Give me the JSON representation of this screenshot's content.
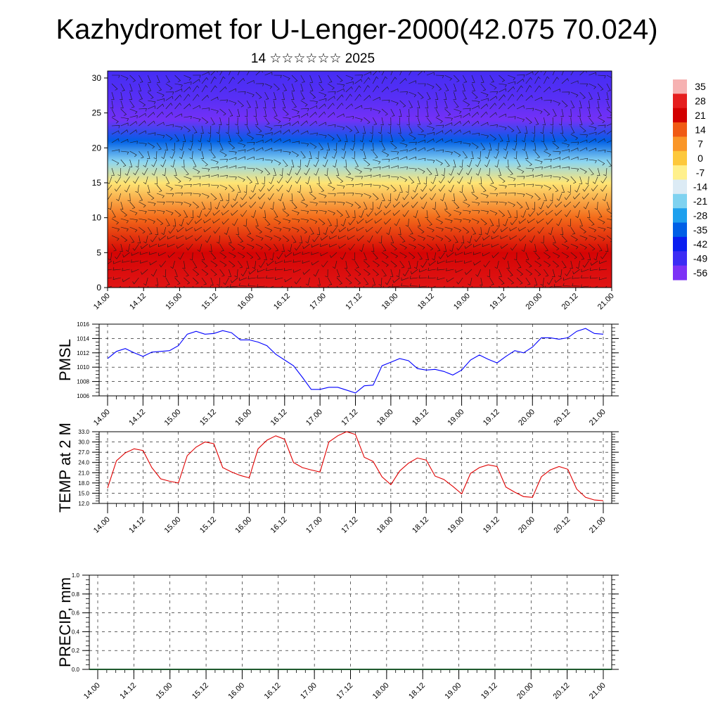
{
  "title": "Kazhydromet for U-Lenger-2000(42.075 70.024)",
  "subtitle": "14 ☆☆☆☆☆☆ 2025",
  "colorbar": {
    "labels": [
      "35",
      "28",
      "21",
      "14",
      "7",
      "0",
      "-7",
      "-14",
      "-21",
      "-28",
      "-35",
      "-42",
      "-49",
      "-56"
    ],
    "colors": [
      "#f6b2b2",
      "#e51e1e",
      "#d20000",
      "#f05a14",
      "#fa9628",
      "#fdc83c",
      "#fff08c",
      "#dcebf5",
      "#7fd2f0",
      "#1ea0ee",
      "#005fe6",
      "#0a1ef0",
      "#3c2cf4",
      "#7d32f6"
    ]
  },
  "chart_data": [
    {
      "type": "heatmap",
      "title": "Kazhydromet for U-Lenger-2000(42.075 70.024)",
      "subtitle": "14 ☆☆☆☆☆☆ 2025",
      "x_ticks": [
        "14.00",
        "14.12",
        "15.00",
        "15.12",
        "16.00",
        "16.12",
        "17.00",
        "17.12",
        "18.00",
        "18.12",
        "19.00",
        "19.12",
        "20.00",
        "20.12",
        "21.00"
      ],
      "y_ticks": [
        "0",
        "5",
        "10",
        "15",
        "20",
        "25",
        "30"
      ],
      "ylim": [
        0,
        31
      ],
      "colorbar_levels": [
        35,
        28,
        21,
        14,
        7,
        0,
        -7,
        -14,
        -21,
        -28,
        -35,
        -42,
        -49,
        -56
      ],
      "temperature_profile": [
        {
          "level": 0,
          "value": 26
        },
        {
          "level": 5,
          "value": 22
        },
        {
          "level": 10,
          "value": 12
        },
        {
          "level": 15,
          "value": -5
        },
        {
          "level": 18,
          "value": -20
        },
        {
          "level": 21,
          "value": -35
        },
        {
          "level": 24,
          "value": -55
        },
        {
          "level": 27,
          "value": -52
        },
        {
          "level": 31,
          "value": -50
        }
      ]
    },
    {
      "type": "line",
      "ylabel": "PMSL",
      "x_ticks": [
        "14.00",
        "14.12",
        "15.00",
        "15.12",
        "16.00",
        "16.12",
        "17.00",
        "17.12",
        "18.00",
        "18.12",
        "19.00",
        "19.12",
        "20.00",
        "20.12",
        "21.00"
      ],
      "y_ticks": [
        "1016",
        "1014",
        "1012",
        "1010",
        "1008",
        "1006"
      ],
      "ylim": [
        1006,
        1016
      ],
      "series": [
        {
          "color": "#0000ff",
          "values": [
            1011.2,
            1012.2,
            1012.6,
            1012.0,
            1011.5,
            1012.1,
            1012.2,
            1012.3,
            1013.0,
            1014.6,
            1015.0,
            1014.6,
            1014.7,
            1015.1,
            1014.8,
            1013.8,
            1013.8,
            1013.5,
            1013.0,
            1011.8,
            1011.0,
            1010.2,
            1008.6,
            1006.9,
            1006.9,
            1007.2,
            1007.2,
            1006.8,
            1006.4,
            1007.4,
            1007.5,
            1010.2,
            1010.7,
            1011.2,
            1010.9,
            1009.8,
            1009.6,
            1009.7,
            1009.4,
            1008.9,
            1009.6,
            1011.0,
            1011.7,
            1011.1,
            1010.6,
            1011.5,
            1012.3,
            1012.0,
            1012.8,
            1014.1,
            1014.1,
            1013.9,
            1014.1,
            1015.0,
            1015.4,
            1014.7,
            1014.6
          ]
        }
      ]
    },
    {
      "type": "line",
      "ylabel": "TEMP at 2 M",
      "x_ticks": [
        "14.00",
        "14.12",
        "15.00",
        "15.12",
        "16.00",
        "16.12",
        "17.00",
        "17.12",
        "18.00",
        "18.12",
        "19.00",
        "19.12",
        "20.00",
        "20.12",
        "21.00"
      ],
      "y_ticks": [
        "33.0",
        "30.0",
        "27.0",
        "24.0",
        "21.0",
        "18.0",
        "15.0",
        "12.0"
      ],
      "ylim": [
        12,
        33
      ],
      "series": [
        {
          "color": "#e00000",
          "values": [
            16.5,
            24.5,
            26.8,
            28.0,
            27.5,
            22.5,
            19.2,
            18.5,
            18.0,
            26.0,
            28.5,
            30.0,
            29.5,
            22.5,
            21.2,
            20.2,
            19.5,
            28.0,
            30.5,
            31.8,
            30.8,
            24.0,
            22.5,
            21.8,
            21.2,
            30.0,
            31.8,
            33.0,
            32.2,
            25.5,
            24.3,
            19.8,
            17.5,
            21.5,
            23.8,
            25.3,
            24.7,
            20.0,
            19.0,
            17.0,
            14.8,
            20.8,
            22.5,
            23.3,
            22.8,
            16.8,
            15.3,
            14.0,
            13.8,
            19.8,
            21.8,
            22.8,
            22.0,
            16.2,
            13.8,
            13.0,
            12.8
          ]
        }
      ]
    },
    {
      "type": "bar",
      "ylabel": "PRECIP, mm",
      "x_ticks": [
        "14.00",
        "14.12",
        "15.00",
        "15.12",
        "16.00",
        "16.12",
        "17.00",
        "17.12",
        "18.00",
        "18.12",
        "19.00",
        "19.12",
        "20.00",
        "20.12",
        "21.00"
      ],
      "y_ticks": [
        "1.0",
        "0.8",
        "0.6",
        "0.4",
        "0.2",
        "0.0"
      ],
      "ylim": [
        0,
        1
      ],
      "values": [
        0,
        0,
        0,
        0,
        0,
        0,
        0,
        0,
        0,
        0,
        0,
        0,
        0,
        0,
        0,
        0,
        0,
        0,
        0,
        0,
        0,
        0,
        0,
        0,
        0,
        0,
        0,
        0,
        0,
        0,
        0,
        0,
        0,
        0,
        0,
        0,
        0,
        0,
        0,
        0,
        0,
        0,
        0,
        0,
        0,
        0,
        0,
        0,
        0,
        0,
        0,
        0,
        0,
        0,
        0,
        0,
        0
      ]
    }
  ]
}
